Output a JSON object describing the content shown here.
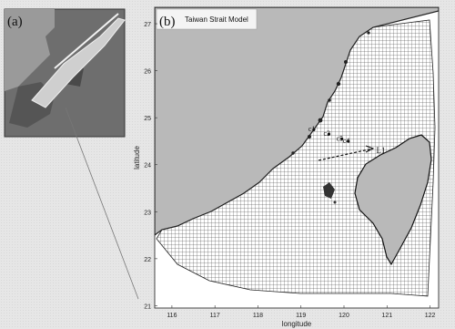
{
  "inset": {
    "panel_label": "(a)"
  },
  "main_map": {
    "panel_label": "(b)",
    "title": "Taiwan Strait Model",
    "x_axis_label": "longitude",
    "y_axis_label": "latitude",
    "x_ticks": [
      "116",
      "117",
      "118",
      "119",
      "120",
      "121",
      "122"
    ],
    "y_ticks": [
      "21",
      "22",
      "23",
      "24",
      "25",
      "26",
      "27"
    ],
    "x_range": [
      115.6,
      122.2
    ],
    "y_range": [
      20.95,
      27.35
    ],
    "stations": [
      {
        "label": "c1",
        "lon": 119.3,
        "lat": 24.75
      },
      {
        "label": "c3",
        "lon": 119.65,
        "lat": 24.65
      },
      {
        "label": "c5",
        "lon": 119.95,
        "lat": 24.55
      },
      {
        "label": "c4",
        "lon": 120.1,
        "lat": 24.5
      }
    ],
    "line_label": {
      "label": "L1",
      "lon": 120.75,
      "lat": 24.25
    }
  },
  "colors": {
    "land": "#b9b9b9",
    "land_dark": "#6f6f6f",
    "grid": "#3a3a3a",
    "background": "#e6e6e6"
  }
}
